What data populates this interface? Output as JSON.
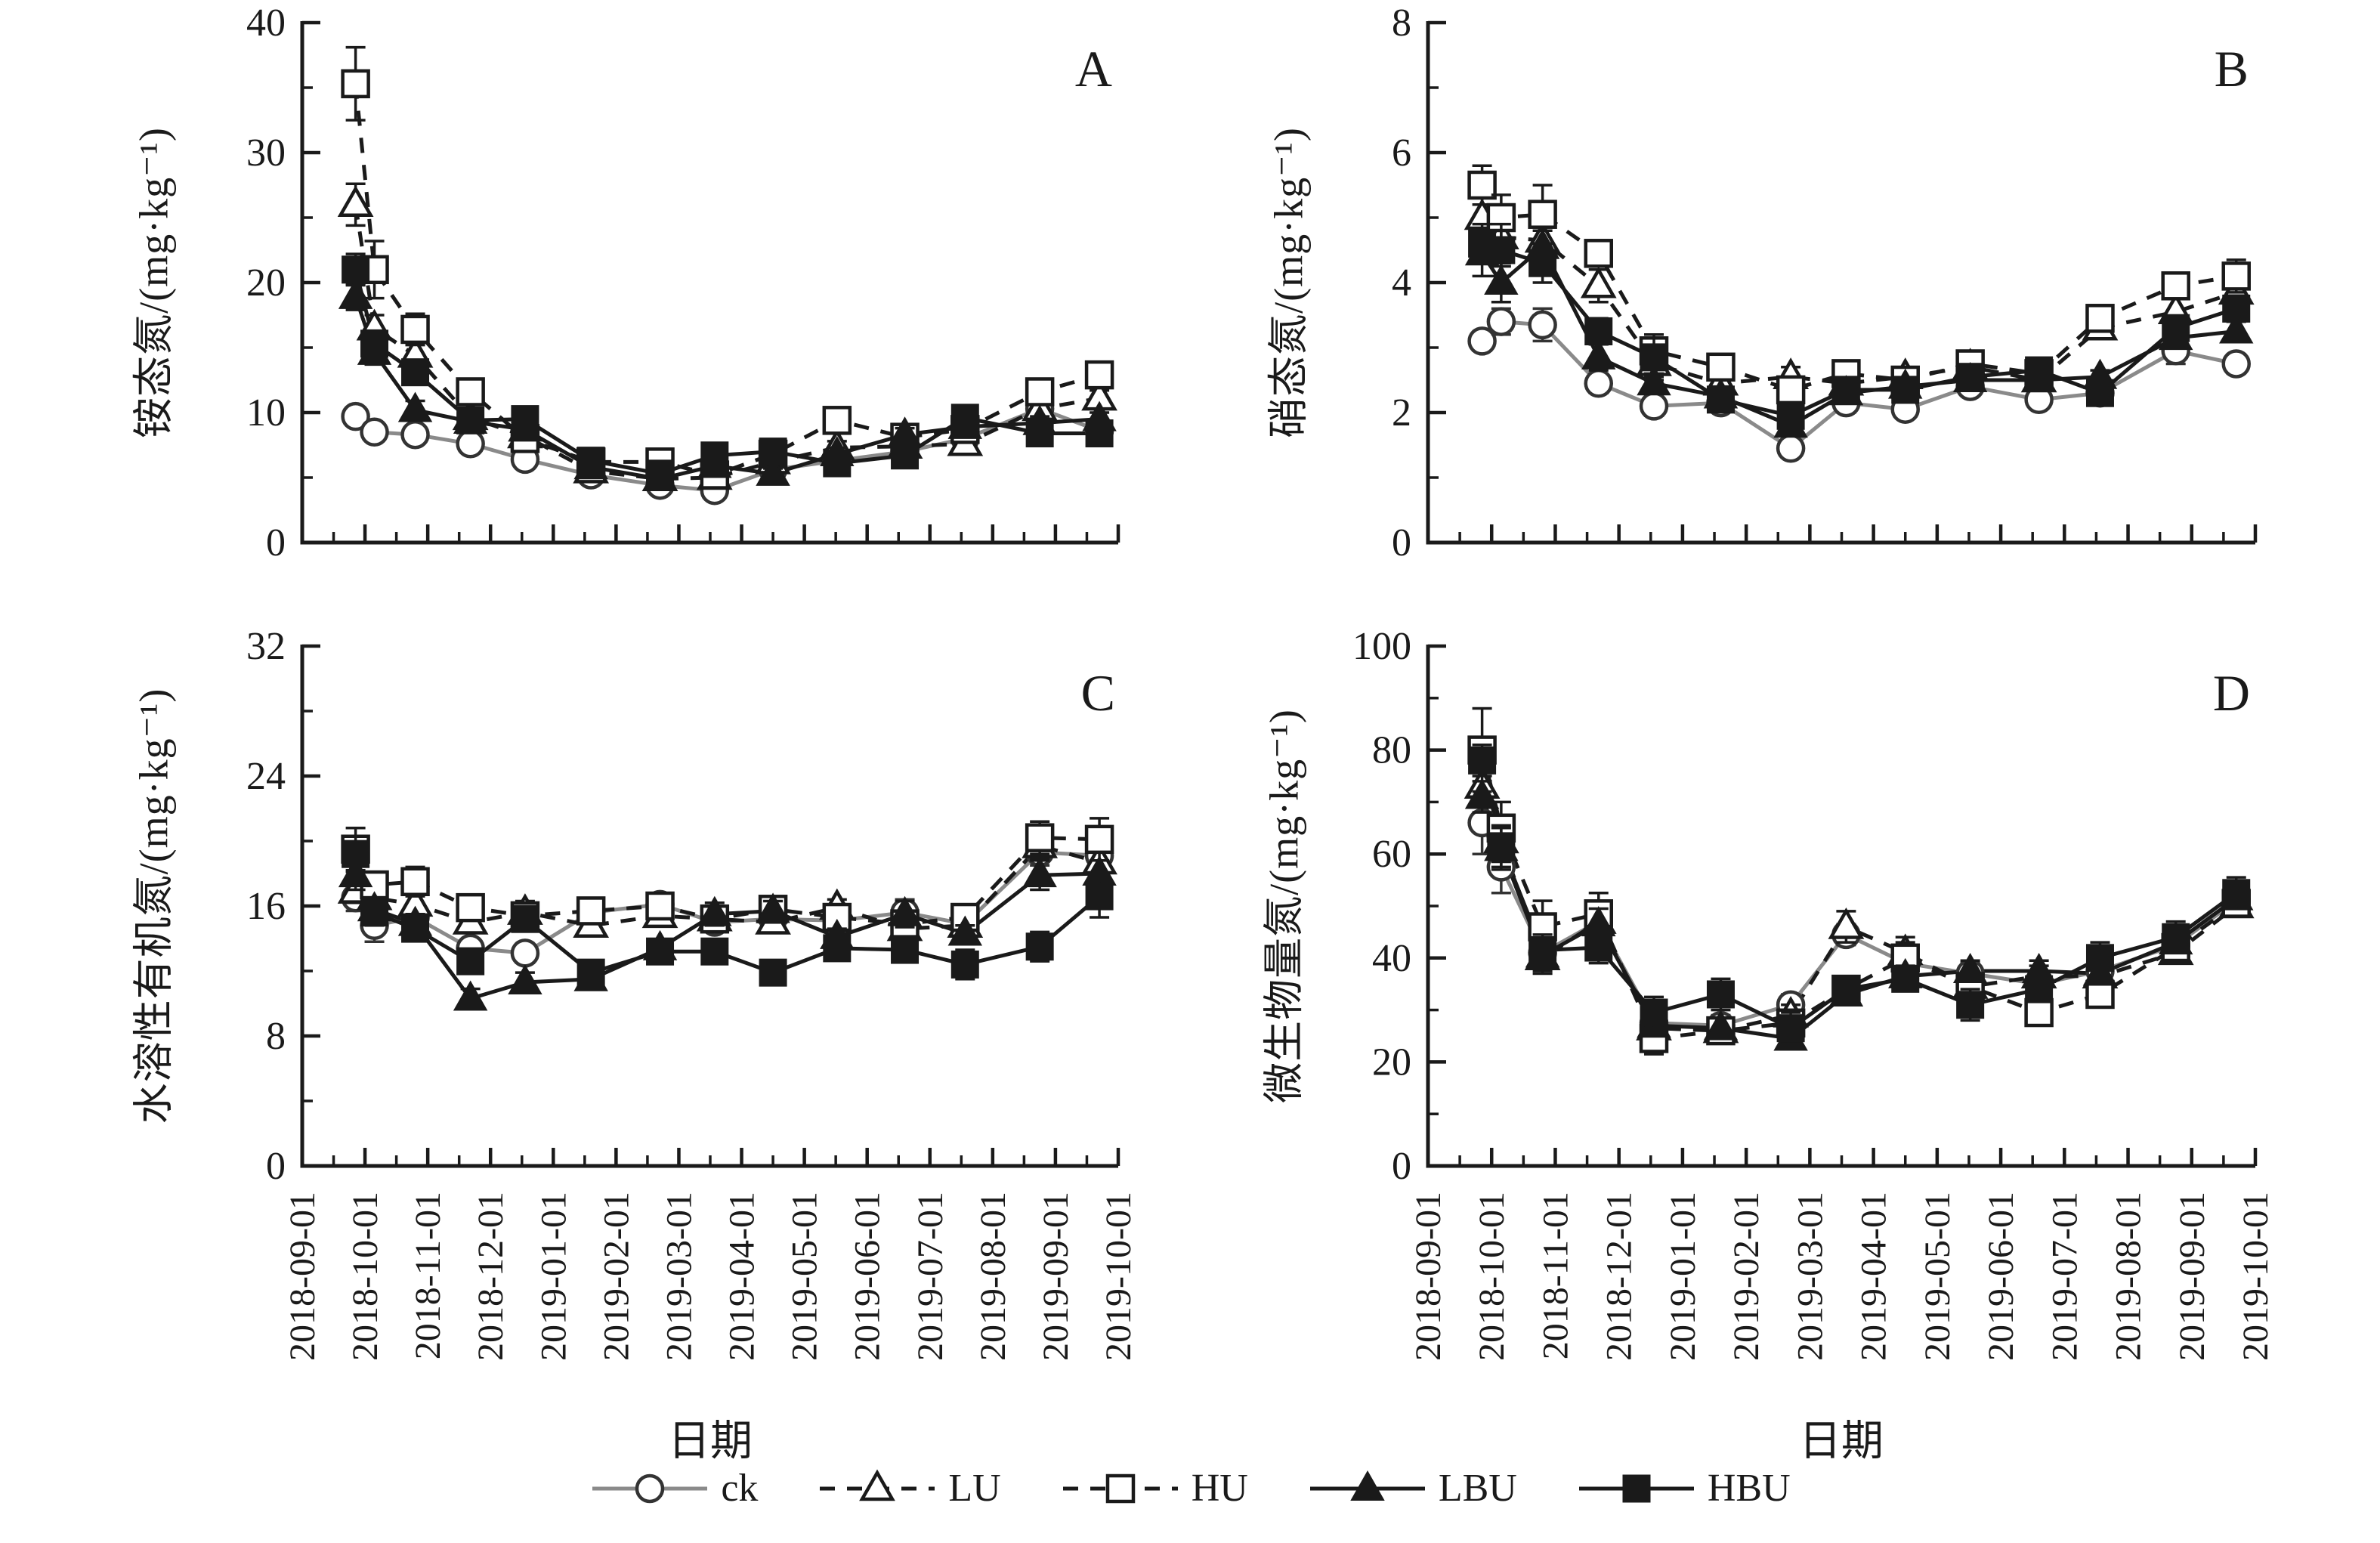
{
  "figure": {
    "background": "#ffffff",
    "ink_color": "#1a1a1a",
    "gray_color": "#8a8a8a"
  },
  "x_axis": {
    "label": "日期",
    "tick_labels": [
      "2018-09-01",
      "2018-10-01",
      "2018-11-01",
      "2018-12-01",
      "2019-01-01",
      "2019-02-01",
      "2019-03-01",
      "2019-04-01",
      "2019-05-01",
      "2019-06-01",
      "2019-07-01",
      "2019-08-01",
      "2019-09-01",
      "2019-10-01"
    ],
    "range_months": [
      0,
      13
    ]
  },
  "legend": {
    "items": [
      {
        "label": "ck",
        "marker": "open-circle",
        "line": "solid",
        "color": "#8a8a8a"
      },
      {
        "label": "LU",
        "marker": "open-triangle",
        "line": "dashed",
        "color": "#1a1a1a"
      },
      {
        "label": "HU",
        "marker": "open-square",
        "line": "dashed",
        "color": "#1a1a1a"
      },
      {
        "label": "LBU",
        "marker": "filled-triangle",
        "line": "solid",
        "color": "#1a1a1a"
      },
      {
        "label": "HBU",
        "marker": "filled-square",
        "line": "solid",
        "color": "#1a1a1a"
      }
    ]
  },
  "sample_x_months": [
    0.85,
    1.15,
    1.8,
    2.68,
    3.55,
    4.6,
    5.7,
    6.57,
    7.5,
    8.52,
    9.6,
    10.56,
    11.75,
    12.7
  ],
  "chart_data": [
    {
      "panel": "A",
      "type": "line",
      "title": "",
      "xlabel": "日期",
      "ylabel": "铵态氮/(mg·kg⁻¹)",
      "ylim": [
        0,
        40
      ],
      "yticks": [
        0,
        10,
        20,
        30,
        40
      ],
      "series": [
        {
          "name": "ck",
          "values": [
            9.7,
            8.5,
            8.3,
            7.6,
            6.4,
            5.2,
            4.4,
            4.0,
            5.6,
            6.3,
            7.0,
            8.0,
            10.3,
            8.6
          ],
          "err": [
            0.6,
            0.5,
            0.4,
            0.4,
            0.4,
            0.3,
            0.3,
            0.3,
            0.3,
            0.4,
            0.4,
            0.4,
            0.5,
            0.4
          ]
        },
        {
          "name": "LU",
          "values": [
            26.0,
            16.5,
            14.4,
            9.6,
            8.2,
            5.5,
            4.9,
            5.0,
            6.2,
            7.3,
            7.4,
            7.6,
            10.3,
            11.1
          ],
          "err": [
            1.6,
            1.0,
            0.8,
            0.6,
            0.5,
            0.4,
            0.4,
            0.4,
            0.4,
            0.5,
            0.5,
            0.5,
            0.6,
            0.6
          ]
        },
        {
          "name": "HU",
          "values": [
            35.3,
            21.0,
            16.4,
            11.6,
            8.0,
            6.2,
            6.2,
            5.2,
            6.8,
            9.4,
            8.1,
            8.7,
            11.6,
            12.9
          ],
          "err": [
            2.8,
            2.2,
            1.2,
            0.9,
            0.7,
            0.5,
            0.5,
            0.4,
            0.5,
            0.6,
            0.5,
            0.6,
            0.7,
            0.6
          ]
        },
        {
          "name": "LBU",
          "values": [
            18.9,
            14.6,
            10.2,
            9.3,
            8.7,
            5.8,
            4.9,
            5.9,
            5.3,
            6.8,
            8.3,
            8.9,
            9.2,
            9.5
          ],
          "err": [
            1.0,
            0.9,
            0.7,
            0.6,
            0.5,
            0.4,
            0.4,
            0.4,
            0.4,
            0.5,
            0.5,
            0.5,
            0.5,
            0.5
          ]
        },
        {
          "name": "HBU",
          "values": [
            21.0,
            15.3,
            13.1,
            9.4,
            9.5,
            6.3,
            5.3,
            6.7,
            7.0,
            6.1,
            6.7,
            9.6,
            8.4,
            8.4
          ],
          "err": [
            1.2,
            1.0,
            0.8,
            0.6,
            0.6,
            0.4,
            0.4,
            0.4,
            0.4,
            0.5,
            0.5,
            0.6,
            0.5,
            0.5
          ]
        }
      ]
    },
    {
      "panel": "B",
      "type": "line",
      "title": "",
      "xlabel": "日期",
      "ylabel": "硝态氮/(mg·kg⁻¹)",
      "ylim": [
        0,
        8
      ],
      "yticks": [
        0,
        2,
        4,
        6,
        8
      ],
      "series": [
        {
          "name": "ck",
          "values": [
            3.1,
            3.4,
            3.35,
            2.45,
            2.1,
            2.15,
            1.45,
            2.15,
            2.05,
            2.4,
            2.2,
            2.3,
            2.95,
            2.75
          ],
          "err": [
            0.15,
            0.2,
            0.25,
            0.15,
            0.15,
            0.1,
            0.1,
            0.15,
            0.1,
            0.1,
            0.1,
            0.1,
            0.2,
            0.15
          ]
        },
        {
          "name": "LU",
          "values": [
            5.0,
            4.7,
            4.65,
            3.95,
            2.75,
            2.45,
            2.55,
            2.45,
            2.55,
            2.7,
            2.5,
            3.3,
            3.55,
            3.85
          ],
          "err": [
            0.3,
            0.45,
            0.2,
            0.25,
            0.2,
            0.15,
            0.15,
            0.1,
            0.15,
            0.1,
            0.1,
            0.15,
            0.2,
            0.2
          ]
        },
        {
          "name": "HU",
          "values": [
            5.5,
            5.0,
            5.05,
            4.45,
            2.95,
            2.7,
            2.35,
            2.6,
            2.5,
            2.75,
            2.6,
            3.45,
            3.95,
            4.1
          ],
          "err": [
            0.3,
            0.35,
            0.45,
            0.2,
            0.15,
            0.15,
            0.15,
            0.1,
            0.1,
            0.15,
            0.1,
            0.2,
            0.15,
            0.25
          ]
        },
        {
          "name": "LBU",
          "values": [
            4.45,
            4.0,
            4.55,
            2.85,
            2.45,
            2.25,
            1.8,
            2.3,
            2.4,
            2.5,
            2.5,
            2.55,
            3.15,
            3.25
          ],
          "err": [
            0.35,
            0.3,
            0.25,
            0.2,
            0.15,
            0.15,
            0.1,
            0.1,
            0.1,
            0.1,
            0.1,
            0.1,
            0.15,
            0.15
          ]
        },
        {
          "name": "HBU",
          "values": [
            4.6,
            4.5,
            4.3,
            3.25,
            2.85,
            2.2,
            1.95,
            2.35,
            2.35,
            2.55,
            2.65,
            2.3,
            3.3,
            3.6
          ],
          "err": [
            0.3,
            0.4,
            0.3,
            0.2,
            0.35,
            0.1,
            0.15,
            0.1,
            0.1,
            0.1,
            0.1,
            0.1,
            0.15,
            0.2
          ]
        }
      ]
    },
    {
      "panel": "C",
      "type": "line",
      "title": "",
      "xlabel": "日期",
      "ylabel": "水溶性有机氮/(mg·kg⁻¹)",
      "ylim": [
        0,
        32
      ],
      "yticks": [
        0,
        8,
        16,
        24,
        32
      ],
      "series": [
        {
          "name": "ck",
          "values": [
            16.5,
            14.8,
            15.3,
            13.4,
            13.1,
            15.6,
            16.1,
            15.0,
            15.2,
            15.1,
            15.6,
            14.9,
            19.3,
            19.1
          ],
          "err": [
            0.8,
            1.0,
            0.6,
            0.5,
            0.6,
            0.5,
            0.6,
            0.5,
            0.5,
            0.5,
            0.8,
            0.5,
            0.8,
            0.6
          ]
        },
        {
          "name": "LU",
          "values": [
            16.9,
            16.5,
            16.1,
            15.0,
            15.6,
            14.8,
            15.4,
            15.2,
            15.0,
            15.9,
            14.6,
            14.8,
            19.7,
            18.7
          ],
          "err": [
            0.7,
            0.6,
            0.7,
            0.6,
            0.7,
            0.5,
            0.5,
            0.5,
            0.5,
            0.5,
            0.5,
            0.5,
            0.8,
            0.7
          ]
        },
        {
          "name": "HU",
          "values": [
            19.5,
            17.3,
            17.5,
            15.9,
            15.4,
            15.7,
            16.0,
            15.2,
            15.8,
            15.3,
            14.9,
            15.3,
            20.2,
            20.1
          ],
          "err": [
            1.3,
            0.8,
            0.9,
            0.8,
            0.6,
            0.6,
            0.5,
            0.5,
            0.5,
            0.7,
            0.5,
            0.6,
            1.0,
            1.3
          ]
        },
        {
          "name": "LBU",
          "values": [
            17.9,
            15.8,
            14.9,
            10.3,
            11.3,
            11.5,
            13.4,
            15.5,
            15.7,
            14.1,
            15.5,
            14.3,
            17.9,
            18.0
          ],
          "err": [
            0.9,
            0.7,
            0.6,
            0.6,
            0.6,
            0.5,
            0.5,
            0.7,
            0.6,
            0.5,
            0.8,
            0.5,
            0.9,
            0.8
          ]
        },
        {
          "name": "HBU",
          "values": [
            19.2,
            15.6,
            14.6,
            12.6,
            15.2,
            11.9,
            13.2,
            13.2,
            11.9,
            13.4,
            13.3,
            12.4,
            13.5,
            16.6
          ],
          "err": [
            1.1,
            0.8,
            0.7,
            0.6,
            0.6,
            0.7,
            0.5,
            0.5,
            0.6,
            0.5,
            0.5,
            0.9,
            0.9,
            1.3
          ]
        }
      ]
    },
    {
      "panel": "D",
      "type": "line",
      "title": "",
      "xlabel": "日期",
      "ylabel": "微生物量氮/(mg·kg⁻¹)",
      "ylim": [
        0,
        100
      ],
      "yticks": [
        0,
        20,
        40,
        60,
        80,
        100
      ],
      "series": [
        {
          "name": "ck",
          "values": [
            66,
            57.5,
            41,
            47,
            27.5,
            27,
            31,
            44.5,
            39,
            37,
            35,
            37.5,
            42.5,
            51
          ],
          "err": [
            6,
            5,
            3,
            3,
            2,
            2,
            2,
            2,
            3,
            2,
            2,
            2,
            2,
            2
          ]
        },
        {
          "name": "LU",
          "values": [
            73,
            62.5,
            40,
            47,
            26.5,
            26,
            29,
            46,
            41,
            34.5,
            36.5,
            36.5,
            41,
            50
          ],
          "err": [
            4,
            4,
            3,
            3,
            2,
            2,
            2,
            3,
            3,
            2,
            2,
            2,
            2,
            2
          ]
        },
        {
          "name": "HU",
          "values": [
            80,
            65,
            46,
            48.5,
            24.5,
            26,
            27.5,
            34,
            40,
            34.5,
            29.5,
            33,
            42,
            50.5
          ],
          "err": [
            8,
            5,
            5,
            4,
            3,
            2,
            2,
            2,
            3,
            2,
            2,
            2,
            2,
            2
          ]
        },
        {
          "name": "LBU",
          "values": [
            71,
            61,
            40.5,
            46.5,
            27,
            26.5,
            24.5,
            33,
            36.5,
            37.5,
            37.5,
            37,
            43,
            51.5
          ],
          "err": [
            3,
            4,
            3,
            3,
            2,
            2,
            2,
            2,
            2,
            2,
            2,
            2,
            2,
            2
          ]
        },
        {
          "name": "HBU",
          "values": [
            78,
            61.5,
            41.5,
            42,
            29.5,
            33,
            26.5,
            34,
            36,
            31,
            34,
            40,
            44,
            52.5
          ],
          "err": [
            3,
            4,
            3,
            3,
            3,
            3,
            3,
            2,
            2,
            3,
            2,
            3,
            3,
            3
          ]
        }
      ]
    }
  ]
}
